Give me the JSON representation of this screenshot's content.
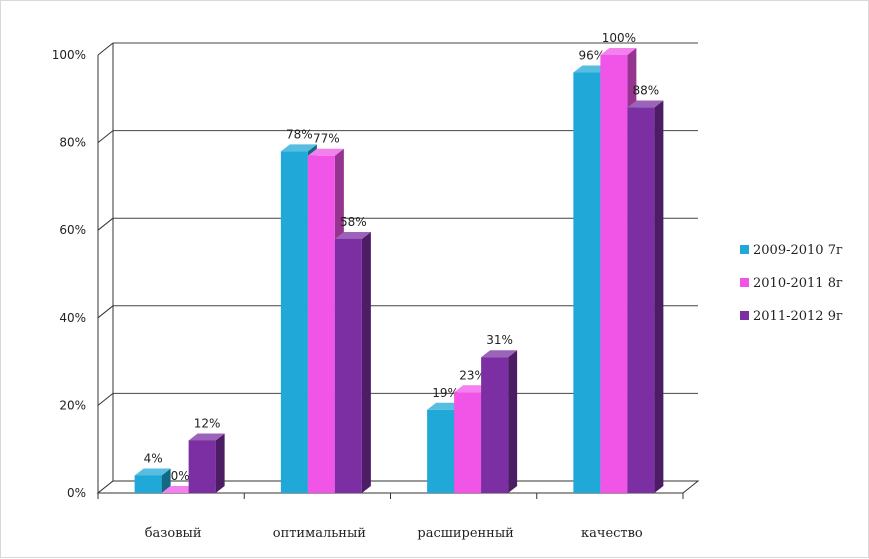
{
  "chart_data": {
    "type": "bar",
    "categories": [
      "базовый",
      "оптимальный",
      "расширенный",
      "качество"
    ],
    "series": [
      {
        "name": "2009-2010 7г",
        "values": [
          4,
          78,
          19,
          96
        ],
        "color": "#1fa8d8"
      },
      {
        "name": "2010-2011 8г",
        "values": [
          0,
          77,
          23,
          100
        ],
        "color": "#f055e8"
      },
      {
        "name": "2011-2012 9г",
        "values": [
          12,
          58,
          31,
          88
        ],
        "color": "#7b2fa3"
      }
    ],
    "data_labels": [
      [
        "4%",
        "78%",
        "19%",
        "96%"
      ],
      [
        "0%",
        "77%",
        "23%",
        "100%"
      ],
      [
        "12%",
        "58%",
        "31%",
        "88%"
      ]
    ],
    "y_ticks": [
      0,
      20,
      40,
      60,
      80,
      100
    ],
    "y_tick_labels": [
      "0%",
      "20%",
      "40%",
      "60%",
      "80%",
      "100%"
    ],
    "ylim": [
      0,
      100
    ],
    "grid": true,
    "legend_position": "right",
    "title": "",
    "xlabel": "",
    "ylabel": ""
  }
}
